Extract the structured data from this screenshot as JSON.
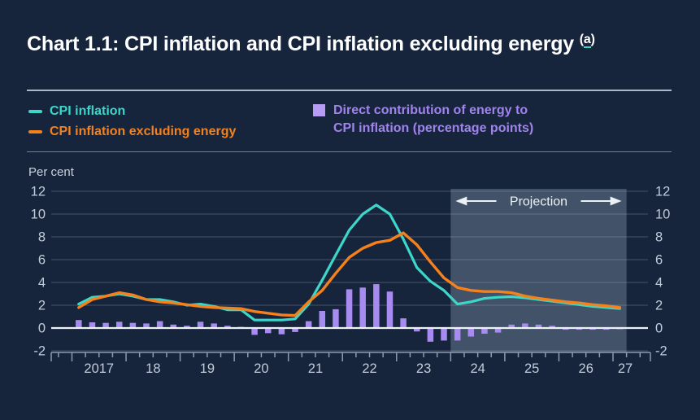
{
  "page": {
    "background": "#16253C"
  },
  "title": {
    "text": "Chart 1.1: CPI inflation and CPI inflation excluding energy",
    "footnote_open": "(",
    "footnote_letter": "a",
    "footnote_close": ")"
  },
  "legend": {
    "cpi": {
      "label": "CPI inflation",
      "color": "#3CD7C9"
    },
    "ex_energy": {
      "label": "CPI inflation excluding energy",
      "color": "#F5811C"
    },
    "energy": {
      "label_line1": "Direct contribution of energy to",
      "label_line2": "CPI inflation (percentage points)",
      "color": "#A084EC",
      "swatch_color": "#B79CF4"
    }
  },
  "chart_data": {
    "type": "line+bar",
    "title": "CPI inflation and CPI inflation excluding energy",
    "unit_label": "Per cent",
    "ylim": [
      -2,
      12
    ],
    "yticks": [
      12,
      10,
      8,
      6,
      4,
      2,
      0,
      -2
    ],
    "grid": true,
    "legend_position": "top",
    "x_axis": {
      "year_labels": [
        "2017",
        "18",
        "19",
        "20",
        "21",
        "22",
        "23",
        "24",
        "25",
        "26",
        "27"
      ],
      "quarters_per_year": 4
    },
    "categories": [
      "2017 Q1",
      "2017 Q2",
      "2017 Q3",
      "2017 Q4",
      "2018 Q1",
      "2018 Q2",
      "2018 Q3",
      "2018 Q4",
      "2019 Q1",
      "2019 Q2",
      "2019 Q3",
      "2019 Q4",
      "2020 Q1",
      "2020 Q2",
      "2020 Q3",
      "2020 Q4",
      "2021 Q1",
      "2021 Q2",
      "2021 Q3",
      "2021 Q4",
      "2022 Q1",
      "2022 Q2",
      "2022 Q3",
      "2022 Q4",
      "2023 Q1",
      "2023 Q2",
      "2023 Q3",
      "2023 Q4",
      "2024 Q1",
      "2024 Q2",
      "2024 Q3",
      "2024 Q4",
      "2025 Q1",
      "2025 Q2",
      "2025 Q3",
      "2025 Q4",
      "2026 Q1",
      "2026 Q2",
      "2026 Q3",
      "2026 Q4",
      "2027 Q1"
    ],
    "series": [
      {
        "name": "CPI inflation",
        "type": "line",
        "color": "#3CD7C9",
        "values": [
          2.1,
          2.7,
          2.8,
          3.0,
          2.8,
          2.5,
          2.5,
          2.3,
          2.0,
          2.1,
          1.9,
          1.6,
          1.6,
          0.7,
          0.7,
          0.7,
          0.8,
          2.1,
          4.2,
          6.4,
          8.6,
          10.0,
          10.8,
          10.0,
          7.8,
          5.3,
          4.1,
          3.3,
          2.1,
          2.3,
          2.6,
          2.7,
          2.75,
          2.65,
          2.5,
          2.35,
          2.2,
          2.05,
          1.9,
          1.8,
          1.7
        ]
      },
      {
        "name": "CPI inflation excluding energy",
        "type": "line",
        "color": "#F5811C",
        "values": [
          1.8,
          2.5,
          2.8,
          3.1,
          2.9,
          2.5,
          2.3,
          2.2,
          2.05,
          1.9,
          1.8,
          1.75,
          1.7,
          1.45,
          1.3,
          1.15,
          1.1,
          2.3,
          3.3,
          4.8,
          6.2,
          7.0,
          7.5,
          7.7,
          8.35,
          7.3,
          5.8,
          4.4,
          3.55,
          3.3,
          3.2,
          3.2,
          3.1,
          2.8,
          2.6,
          2.45,
          2.3,
          2.2,
          2.05,
          1.95,
          1.8
        ]
      },
      {
        "name": "Direct contribution of energy to CPI inflation (percentage points)",
        "type": "bar",
        "color": "#A78BF0",
        "values": [
          0.7,
          0.5,
          0.45,
          0.55,
          0.45,
          0.4,
          0.6,
          0.3,
          0.2,
          0.55,
          0.4,
          0.2,
          0.1,
          -0.6,
          -0.45,
          -0.55,
          -0.35,
          0.6,
          1.5,
          1.65,
          3.4,
          3.55,
          3.85,
          3.2,
          0.85,
          -0.3,
          -1.2,
          -1.1,
          -1.1,
          -0.75,
          -0.5,
          -0.4,
          0.3,
          0.4,
          0.3,
          0.2,
          -0.15,
          -0.15,
          -0.15,
          -0.15,
          -0.1
        ]
      }
    ],
    "projection": {
      "label": "Projection",
      "start_category": "2024 Q1",
      "end_category": "2027 Q1"
    }
  }
}
